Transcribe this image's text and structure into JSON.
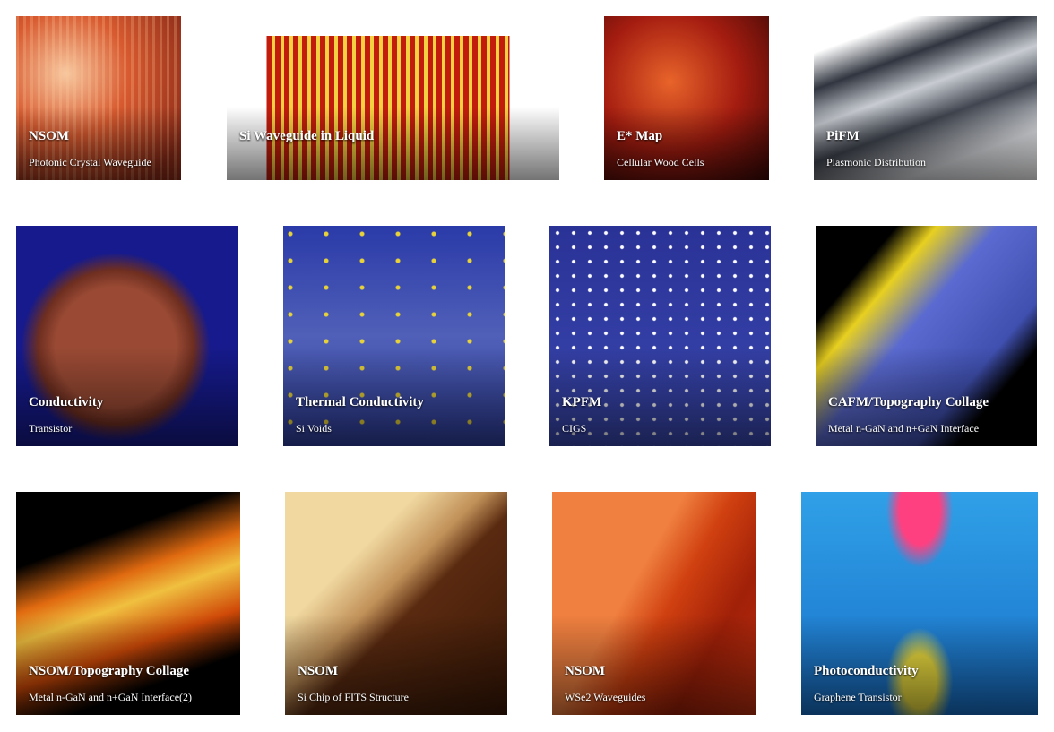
{
  "gallery": {
    "items": [
      {
        "title": "NSOM",
        "subtitle": "Photonic Crystal Waveguide"
      },
      {
        "title": "Si Waveguide in Liquid",
        "subtitle": ""
      },
      {
        "title": "E* Map",
        "subtitle": "Cellular Wood Cells"
      },
      {
        "title": "PiFM",
        "subtitle": "Plasmonic Distribution"
      },
      {
        "title": "Conductivity",
        "subtitle": "Transistor"
      },
      {
        "title": "Thermal Conductivity",
        "subtitle": "Si Voids"
      },
      {
        "title": "KPFM",
        "subtitle": "CIGS"
      },
      {
        "title": "CAFM/Topography Collage",
        "subtitle": "Metal n-GaN and n+GaN Interface"
      },
      {
        "title": "NSOM/Topography Collage",
        "subtitle": "Metal n-GaN and n+GaN Interface(2)"
      },
      {
        "title": "NSOM",
        "subtitle": "Si Chip of FITS Structure"
      },
      {
        "title": "NSOM",
        "subtitle": "WSe2 Waveguides"
      },
      {
        "title": "Photoconductivity",
        "subtitle": "Graphene Transistor"
      }
    ]
  }
}
